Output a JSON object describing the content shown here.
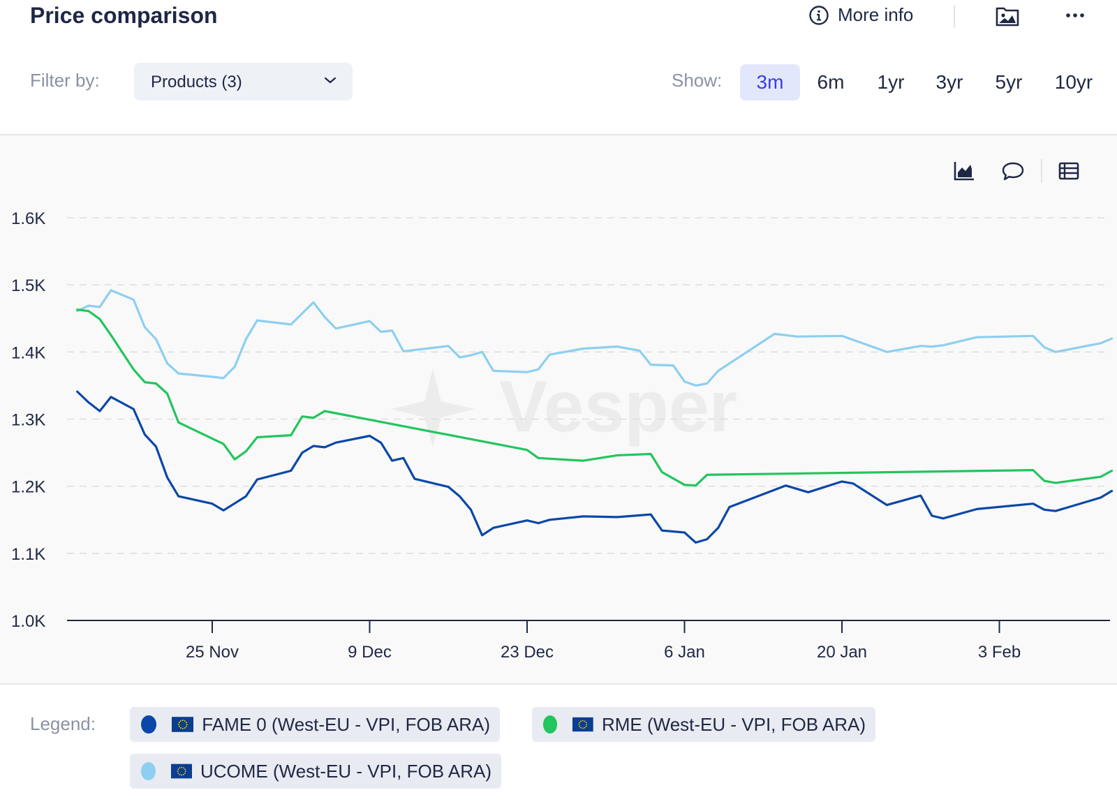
{
  "header": {
    "title": "Price comparison",
    "more_info_label": "More info"
  },
  "filter": {
    "label": "Filter by:",
    "dropdown_value": "Products (3)"
  },
  "range": {
    "label": "Show:",
    "options": [
      "3m",
      "6m",
      "1yr",
      "3yr",
      "5yr",
      "10yr"
    ],
    "selected": "3m"
  },
  "watermark": "Vesper",
  "colors": {
    "fame": "#0a47a8",
    "rme": "#22c55e",
    "ucome": "#8dcff0",
    "active_accent": "#3b40e0"
  },
  "legend": {
    "label": "Legend:",
    "items": [
      {
        "name": "FAME 0 (West-EU - VPI, FOB ARA)",
        "color": "#0a47a8",
        "flag_icon": "eu-flag-icon"
      },
      {
        "name": "RME (West-EU - VPI, FOB ARA)",
        "color": "#22c55e",
        "flag_icon": "eu-flag-icon"
      },
      {
        "name": "UCOME (West-EU - VPI, FOB ARA)",
        "color": "#8dcff0",
        "flag_icon": "eu-flag-icon"
      }
    ]
  },
  "chart_data": {
    "type": "line",
    "title": "",
    "xlabel": "",
    "ylabel": "",
    "ylim": [
      1000,
      1600
    ],
    "xlim": [
      "2024-11-12",
      "2025-02-12"
    ],
    "y_ticks": [
      "1.0K",
      "1.1K",
      "1.2K",
      "1.3K",
      "1.4K",
      "1.5K",
      "1.6K"
    ],
    "y_tick_values": [
      1000,
      1100,
      1200,
      1300,
      1400,
      1500,
      1600
    ],
    "x_ticks": [
      {
        "date": "2024-11-25",
        "label": "25 Nov"
      },
      {
        "date": "2024-12-09",
        "label": "9 Dec"
      },
      {
        "date": "2024-12-23",
        "label": "23 Dec"
      },
      {
        "date": "2025-01-06",
        "label": "6 Jan"
      },
      {
        "date": "2025-01-20",
        "label": "20 Jan"
      },
      {
        "date": "2025-02-03",
        "label": "3 Feb"
      }
    ],
    "grid": true,
    "series": [
      {
        "name": "UCOME (West-EU - VPI, FOB ARA)",
        "color": "#8dcff0",
        "points": [
          [
            "2024-11-13",
            1461
          ],
          [
            "2024-11-14",
            1469
          ],
          [
            "2024-11-15",
            1467
          ],
          [
            "2024-11-16",
            1492
          ],
          [
            "2024-11-18",
            1478
          ],
          [
            "2024-11-19",
            1437
          ],
          [
            "2024-11-20",
            1419
          ],
          [
            "2024-11-21",
            1383
          ],
          [
            "2024-11-22",
            1368
          ],
          [
            "2024-11-25",
            1363
          ],
          [
            "2024-11-26",
            1361
          ],
          [
            "2024-11-27",
            1378
          ],
          [
            "2024-11-28",
            1419
          ],
          [
            "2024-11-29",
            1447
          ],
          [
            "2024-12-02",
            1441
          ],
          [
            "2024-12-04",
            1474
          ],
          [
            "2024-12-05",
            1452
          ],
          [
            "2024-12-06",
            1435
          ],
          [
            "2024-12-09",
            1446
          ],
          [
            "2024-12-10",
            1430
          ],
          [
            "2024-12-11",
            1432
          ],
          [
            "2024-12-12",
            1401
          ],
          [
            "2024-12-16",
            1409
          ],
          [
            "2024-12-17",
            1392
          ],
          [
            "2024-12-18",
            1395
          ],
          [
            "2024-12-19",
            1400
          ],
          [
            "2024-12-20",
            1372
          ],
          [
            "2024-12-23",
            1370
          ],
          [
            "2024-12-24",
            1374
          ],
          [
            "2024-12-25",
            1396
          ],
          [
            "2024-12-28",
            1405
          ],
          [
            "2024-12-31",
            1408
          ],
          [
            "2025-01-02",
            1402
          ],
          [
            "2025-01-03",
            1381
          ],
          [
            "2025-01-05",
            1380
          ],
          [
            "2025-01-06",
            1356
          ],
          [
            "2025-01-07",
            1350
          ],
          [
            "2025-01-08",
            1353
          ],
          [
            "2025-01-09",
            1372
          ],
          [
            "2025-01-14",
            1427
          ],
          [
            "2025-01-16",
            1423
          ],
          [
            "2025-01-20",
            1424
          ],
          [
            "2025-01-24",
            1400
          ],
          [
            "2025-01-27",
            1409
          ],
          [
            "2025-01-28",
            1408
          ],
          [
            "2025-01-29",
            1410
          ],
          [
            "2025-02-01",
            1422
          ],
          [
            "2025-02-06",
            1424
          ],
          [
            "2025-02-07",
            1407
          ],
          [
            "2025-02-08",
            1400
          ],
          [
            "2025-02-12",
            1413
          ],
          [
            "2025-02-13",
            1420
          ]
        ]
      },
      {
        "name": "RME (West-EU - VPI, FOB ARA)",
        "color": "#22c55e",
        "points": [
          [
            "2024-11-13",
            1463
          ],
          [
            "2024-11-14",
            1461
          ],
          [
            "2024-11-15",
            1449
          ],
          [
            "2024-11-16",
            1425
          ],
          [
            "2024-11-18",
            1374
          ],
          [
            "2024-11-19",
            1355
          ],
          [
            "2024-11-20",
            1353
          ],
          [
            "2024-11-21",
            1338
          ],
          [
            "2024-11-22",
            1295
          ],
          [
            "2024-11-25",
            1271
          ],
          [
            "2024-11-26",
            1263
          ],
          [
            "2024-11-27",
            1240
          ],
          [
            "2024-11-28",
            1252
          ],
          [
            "2024-11-29",
            1273
          ],
          [
            "2024-12-02",
            1276
          ],
          [
            "2024-12-03",
            1304
          ],
          [
            "2024-12-04",
            1302
          ],
          [
            "2024-12-05",
            1312
          ],
          [
            "2024-12-23",
            1254
          ],
          [
            "2024-12-24",
            1242
          ],
          [
            "2024-12-28",
            1238
          ],
          [
            "2024-12-31",
            1246
          ],
          [
            "2025-01-03",
            1248
          ],
          [
            "2025-01-04",
            1221
          ],
          [
            "2025-01-06",
            1202
          ],
          [
            "2025-01-07",
            1201
          ],
          [
            "2025-01-08",
            1217
          ],
          [
            "2025-02-06",
            1224
          ],
          [
            "2025-02-07",
            1208
          ],
          [
            "2025-02-08",
            1205
          ],
          [
            "2025-02-12",
            1214
          ],
          [
            "2025-02-13",
            1223
          ]
        ]
      },
      {
        "name": "FAME 0 (West-EU - VPI, FOB ARA)",
        "color": "#0a47a8",
        "points": [
          [
            "2024-11-13",
            1341
          ],
          [
            "2024-11-14",
            1325
          ],
          [
            "2024-11-15",
            1312
          ],
          [
            "2024-11-16",
            1333
          ],
          [
            "2024-11-18",
            1315
          ],
          [
            "2024-11-19",
            1277
          ],
          [
            "2024-11-20",
            1259
          ],
          [
            "2024-11-21",
            1213
          ],
          [
            "2024-11-22",
            1185
          ],
          [
            "2024-11-25",
            1174
          ],
          [
            "2024-11-26",
            1164
          ],
          [
            "2024-11-28",
            1185
          ],
          [
            "2024-11-29",
            1210
          ],
          [
            "2024-12-02",
            1223
          ],
          [
            "2024-12-03",
            1250
          ],
          [
            "2024-12-04",
            1260
          ],
          [
            "2024-12-05",
            1258
          ],
          [
            "2024-12-06",
            1265
          ],
          [
            "2024-12-09",
            1275
          ],
          [
            "2024-12-10",
            1265
          ],
          [
            "2024-12-11",
            1238
          ],
          [
            "2024-12-12",
            1242
          ],
          [
            "2024-12-13",
            1211
          ],
          [
            "2024-12-16",
            1199
          ],
          [
            "2024-12-17",
            1185
          ],
          [
            "2024-12-18",
            1165
          ],
          [
            "2024-12-19",
            1127
          ],
          [
            "2024-12-20",
            1138
          ],
          [
            "2024-12-23",
            1149
          ],
          [
            "2024-12-24",
            1145
          ],
          [
            "2024-12-25",
            1150
          ],
          [
            "2024-12-28",
            1155
          ],
          [
            "2024-12-31",
            1154
          ],
          [
            "2025-01-03",
            1158
          ],
          [
            "2025-01-04",
            1134
          ],
          [
            "2025-01-06",
            1131
          ],
          [
            "2025-01-07",
            1116
          ],
          [
            "2025-01-08",
            1121
          ],
          [
            "2025-01-09",
            1138
          ],
          [
            "2025-01-10",
            1169
          ],
          [
            "2025-01-15",
            1201
          ],
          [
            "2025-01-17",
            1191
          ],
          [
            "2025-01-20",
            1207
          ],
          [
            "2025-01-21",
            1204
          ],
          [
            "2025-01-24",
            1172
          ],
          [
            "2025-01-27",
            1186
          ],
          [
            "2025-01-28",
            1156
          ],
          [
            "2025-01-29",
            1152
          ],
          [
            "2025-02-01",
            1166
          ],
          [
            "2025-02-06",
            1174
          ],
          [
            "2025-02-07",
            1165
          ],
          [
            "2025-02-08",
            1163
          ],
          [
            "2025-02-12",
            1183
          ],
          [
            "2025-02-13",
            1193
          ]
        ]
      }
    ]
  }
}
